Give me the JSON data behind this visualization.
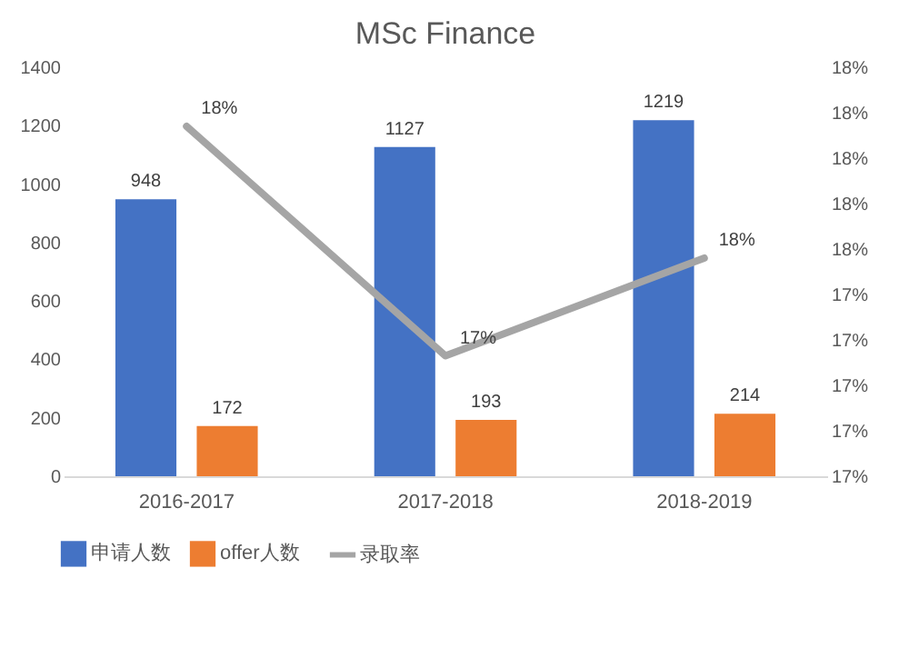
{
  "chart_data": {
    "type": "bar",
    "title": "MSc Finance",
    "categories": [
      "2016-2017",
      "2017-2018",
      "2018-2019"
    ],
    "series": [
      {
        "name": "申请人数",
        "color": "#4472c4",
        "values": [
          948,
          1127,
          1219
        ],
        "value_labels": [
          "948",
          "1127",
          "1219"
        ]
      },
      {
        "name": "offer人数",
        "color": "#ed7d31",
        "values": [
          172,
          193,
          214
        ],
        "value_labels": [
          "172",
          "193",
          "214"
        ]
      },
      {
        "name": "录取率",
        "type": "line",
        "axis": "y2",
        "color": "#a5a5a5",
        "values": [
          18.14,
          17.13,
          17.56
        ],
        "value_labels": [
          "18%",
          "17%",
          "18%"
        ]
      }
    ],
    "ylim": [
      0,
      1400
    ],
    "yticks": [
      0,
      200,
      400,
      600,
      800,
      1000,
      1200,
      1400
    ],
    "y2lim": [
      16.6,
      18.4
    ],
    "y2ticks": [
      {
        "value": 16.6,
        "label": "17%"
      },
      {
        "value": 16.8,
        "label": "17%"
      },
      {
        "value": 17.0,
        "label": "17%"
      },
      {
        "value": 17.2,
        "label": "17%"
      },
      {
        "value": 17.4,
        "label": "17%"
      },
      {
        "value": 17.6,
        "label": "18%"
      },
      {
        "value": 17.8,
        "label": "18%"
      },
      {
        "value": 18.0,
        "label": "18%"
      },
      {
        "value": 18.2,
        "label": "18%"
      },
      {
        "value": 18.4,
        "label": "18%"
      }
    ],
    "legend": "bottom"
  }
}
